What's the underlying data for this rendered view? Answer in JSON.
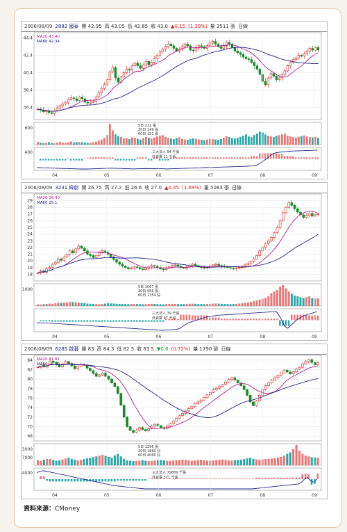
{
  "source": {
    "label": "資料來源：",
    "name": "CMoney"
  },
  "chart_data": [
    {
      "type": "candlestick",
      "header": [
        "2006/08/09",
        "2882 國泰",
        "開 42.95",
        "高 43.05",
        "低 42.85",
        "收 43.0",
        "▲0.15",
        "(1.39%)",
        "量 3511 張",
        "日線"
      ],
      "ma_labels": [
        "MA20 43.40",
        "MA60 42.34"
      ],
      "price_ticks": [
        "44.4",
        "42.4",
        "40.4",
        "38.4",
        "36.4"
      ],
      "price_range": [
        35,
        45
      ],
      "vol_tick": "600",
      "vol_legend": [
        "5日 221 張",
        "20日 149 張",
        "60日 121 張"
      ],
      "flow_tick": "400",
      "flow_legend": [
        "三大法人 94 千張",
        "外資賣 11 千張"
      ],
      "months": [
        "04",
        "05",
        "06",
        "07",
        "08",
        "09"
      ],
      "close": [
        36.2,
        36.1,
        35.9,
        36.0,
        35.8,
        35.7,
        36.0,
        36.3,
        36.6,
        36.8,
        37.0,
        37.3,
        37.5,
        37.4,
        37.2,
        37.6,
        37.4,
        37.0,
        36.9,
        37.0,
        37.1,
        37.6,
        38.1,
        38.6,
        39.0,
        39.6,
        40.5,
        41.0,
        39.8,
        39.3,
        39.9,
        40.4,
        40.8,
        40.7,
        41.2,
        41.5,
        41.2,
        40.9,
        41.3,
        41.7,
        41.3,
        41.6,
        42.0,
        42.4,
        42.8,
        43.1,
        43.4,
        43.7,
        43.5,
        43.2,
        42.9,
        43.1,
        43.4,
        43.7,
        43.5,
        43.0,
        42.9,
        43.3,
        43.5,
        43.4,
        43.2,
        43.5,
        43.8,
        44.0,
        43.7,
        43.4,
        43.2,
        43.5,
        43.9,
        43.7,
        43.3,
        42.9,
        42.7,
        42.5,
        42.2,
        42.0,
        41.9,
        41.6,
        41.2,
        40.8,
        40.2,
        39.4,
        39.0,
        39.8,
        40.3,
        40.0,
        39.6,
        39.8,
        40.2,
        40.6,
        41.2,
        41.6,
        41.9,
        42.1,
        42.4,
        42.3,
        42.6,
        42.9,
        43.2,
        43.0,
        43.3,
        43.0
      ],
      "volume": [
        80,
        60,
        40,
        55,
        70,
        50,
        45,
        60,
        80,
        65,
        55,
        70,
        90,
        60,
        75,
        80,
        70,
        60,
        50,
        55,
        65,
        90,
        120,
        150,
        200,
        280,
        610,
        420,
        300,
        250,
        220,
        180,
        190,
        160,
        210,
        200,
        170,
        150,
        190,
        220,
        200,
        180,
        210,
        240,
        260,
        280,
        230,
        200,
        180,
        160,
        190,
        210,
        170,
        150,
        140,
        160,
        180,
        170,
        150,
        140,
        130,
        150,
        170,
        160,
        150,
        140,
        160,
        200,
        250,
        220,
        190,
        180,
        200,
        230,
        260,
        300,
        240,
        220,
        280,
        320,
        380,
        360,
        300,
        260,
        240,
        220,
        260,
        280,
        300,
        320,
        260,
        240,
        220,
        210,
        230,
        250,
        270,
        240,
        220,
        210,
        230,
        200
      ],
      "flow": [
        0,
        -2,
        -4,
        -6,
        -8,
        -10,
        -12,
        -14,
        -16,
        -18,
        -20,
        -20,
        -22,
        -24,
        -26,
        -28,
        -30,
        -30,
        -30,
        -28,
        -26,
        -24,
        -22,
        -20,
        -18,
        -16,
        -14,
        -12,
        -14,
        -16,
        -18,
        -20,
        -22,
        -24,
        -26,
        -28,
        -26,
        -24,
        -22,
        -20,
        -22,
        -24,
        -22,
        -20,
        -22,
        -24,
        -26,
        -28,
        -26,
        -24,
        -22,
        -20,
        -18,
        -16,
        -14,
        -12,
        -10,
        -8,
        -6,
        -4,
        -2,
        0,
        2,
        4,
        6,
        8,
        10,
        12,
        14,
        16,
        18,
        20,
        22,
        24,
        26,
        28,
        30,
        35,
        40,
        45,
        80,
        120,
        160,
        200,
        260,
        300,
        320,
        330,
        340,
        345,
        350,
        355,
        360,
        362,
        364,
        366,
        368,
        370,
        372,
        374,
        376,
        378
      ]
    },
    {
      "type": "candlestick",
      "header": [
        "2006/08/09",
        "3231 緯創",
        "開 26.75",
        "高 27.2",
        "低 26.6",
        "收 27.0",
        "▲0.45",
        "(1.69%)",
        "量 5083 張",
        "日線"
      ],
      "ma_labels": [
        "MA20 26.40",
        "MA60 25.1"
      ],
      "price_ticks": [
        "29",
        "28",
        "27",
        "26",
        "25",
        "24",
        "23",
        "22",
        "21",
        "20",
        "19",
        "18"
      ],
      "price_range": [
        17,
        30
      ],
      "vol_tick": "1000",
      "vol_legend": [
        "5日 1067 張",
        "20日 956 張",
        "60日 1354 張"
      ],
      "flow_tick": "",
      "flow_legend": [
        "三大法人 39 千張",
        "外資賣 97 千張"
      ],
      "months": [
        "04",
        "05",
        "06",
        "07",
        "08",
        "09"
      ],
      "close": [
        18.2,
        18.5,
        18.3,
        18.8,
        19.0,
        19.5,
        19.8,
        20.3,
        20.1,
        20.6,
        21.0,
        21.5,
        21.2,
        21.8,
        22.2,
        21.9,
        21.5,
        21.0,
        20.8,
        20.5,
        20.8,
        21.2,
        21.5,
        21.3,
        21.0,
        20.6,
        20.2,
        19.8,
        19.5,
        19.2,
        19.0,
        18.8,
        18.9,
        19.1,
        19.0,
        18.8,
        18.7,
        18.9,
        19.1,
        19.3,
        19.2,
        19.0,
        18.8,
        18.7,
        18.9,
        19.1,
        19.3,
        19.4,
        19.2,
        19.0,
        18.9,
        19.1,
        19.3,
        19.5,
        19.3,
        19.1,
        19.0,
        18.9,
        19.0,
        19.2,
        19.4,
        19.5,
        19.3,
        19.2,
        19.1,
        19.0,
        18.9,
        18.8,
        18.9,
        19.0,
        19.2,
        19.4,
        19.6,
        19.9,
        20.3,
        20.8,
        21.5,
        22.0,
        22.6,
        23.0,
        23.5,
        24.2,
        25.0,
        26.0,
        27.2,
        28.0,
        28.7,
        28.3,
        27.8,
        27.3,
        26.9,
        26.5,
        26.8,
        27.1,
        26.7,
        26.9,
        27.0
      ],
      "volume": [
        200,
        180,
        220,
        260,
        300,
        280,
        350,
        400,
        380,
        420,
        450,
        500,
        480,
        460,
        420,
        380,
        350,
        300,
        280,
        260,
        240,
        220,
        260,
        300,
        340,
        320,
        300,
        280,
        260,
        250,
        240,
        230,
        250,
        260,
        240,
        220,
        210,
        230,
        250,
        270,
        260,
        240,
        220,
        210,
        230,
        250,
        270,
        260,
        240,
        220,
        230,
        250,
        270,
        290,
        270,
        250,
        240,
        230,
        250,
        270,
        290,
        310,
        290,
        270,
        250,
        240,
        230,
        250,
        270,
        300,
        340,
        380,
        420,
        500,
        600,
        700,
        800,
        900,
        1000,
        1200,
        1600,
        1800,
        2000,
        2400,
        2600,
        2200,
        1800,
        1500,
        1300,
        1200,
        1100,
        1000,
        1100,
        1200,
        1000,
        900,
        950
      ],
      "flow": [
        0,
        -1,
        -2,
        -3,
        -4,
        -6,
        -8,
        -10,
        -12,
        -14,
        -16,
        -18,
        -20,
        -22,
        -24,
        -26,
        -28,
        -30,
        -32,
        -34,
        -36,
        -38,
        -40,
        -42,
        -44,
        -46,
        -48,
        -50,
        -52,
        -54,
        -56,
        -58,
        -60,
        -62,
        -64,
        -66,
        -68,
        -70,
        -72,
        -74,
        -76,
        -78,
        -80,
        -82,
        -80,
        -78,
        -76,
        -74,
        -72,
        -60,
        -40,
        -20,
        0,
        10,
        20,
        30,
        40,
        50,
        60,
        65,
        70,
        75,
        80,
        82,
        84,
        86,
        88,
        90,
        92,
        94,
        96,
        98,
        100,
        102,
        104,
        106,
        108,
        110,
        112,
        114,
        116,
        118,
        120,
        80,
        20,
        -40,
        -60,
        -30,
        0,
        30,
        50,
        70,
        80,
        90,
        100,
        110,
        120
      ]
    },
    {
      "type": "candlestick",
      "header": [
        "2006/08/09",
        "6285 啟碁",
        "開 83",
        "高 84.3",
        "低 82.5",
        "收 83.5",
        "▼0.6",
        "(0.72%)",
        "量 1790 張",
        "日線"
      ],
      "ma_labels": [
        "MA20 81.81",
        "MA60 76.99"
      ],
      "price_ticks": [
        "84",
        "82",
        "80",
        "78",
        "76",
        "74",
        "72",
        "70",
        "68"
      ],
      "price_range": [
        67,
        85
      ],
      "vol_tick": "13000",
      "vol_tick2": "7000",
      "vol_legend": [
        "5日 1296 張",
        "20日 1880 張",
        "60日 4060 張"
      ],
      "flow_tick": "94000",
      "flow_legend": [
        "三大法人 79889 千張",
        "外資賣 571 千張"
      ],
      "months": [
        "04",
        "05",
        "06",
        "07",
        "08",
        "09"
      ],
      "close": [
        82.5,
        83.0,
        82.6,
        83.2,
        83.8,
        83.5,
        83.0,
        82.6,
        83.2,
        83.7,
        83.3,
        82.8,
        82.2,
        82.7,
        83.1,
        82.9,
        82.3,
        81.8,
        81.2,
        80.6,
        80.9,
        81.3,
        80.6,
        80.0,
        79.2,
        78.4,
        77.0,
        74.5,
        72.0,
        70.0,
        69.2,
        68.8,
        69.3,
        69.8,
        69.4,
        69.1,
        69.6,
        70.1,
        70.5,
        70.2,
        69.8,
        69.6,
        70.1,
        70.6,
        71.2,
        71.8,
        72.3,
        72.8,
        73.3,
        73.8,
        74.2,
        74.8,
        75.2,
        75.6,
        76.1,
        76.7,
        77.2,
        77.8,
        78.1,
        78.5,
        78.9,
        79.4,
        79.9,
        80.3,
        79.8,
        79.2,
        78.6,
        77.8,
        76.6,
        75.2,
        74.4,
        75.4,
        76.6,
        77.8,
        78.6,
        79.2,
        79.8,
        80.3,
        80.8,
        81.3,
        81.9,
        81.5,
        81.1,
        81.6,
        82.1,
        82.5,
        83.2,
        83.7,
        84.1,
        83.5,
        83.0,
        83.5
      ],
      "volume": [
        3000,
        2800,
        3500,
        4000,
        3800,
        3200,
        2800,
        3000,
        3500,
        4200,
        4600,
        4000,
        3500,
        3000,
        3300,
        3800,
        4200,
        4600,
        5000,
        5500,
        6000,
        6500,
        5800,
        5200,
        4800,
        6000,
        7000,
        5500,
        4000,
        3000,
        2800,
        2600,
        2700,
        2900,
        3100,
        2800,
        2600,
        2700,
        2900,
        3100,
        3300,
        3000,
        2800,
        2700,
        2900,
        3100,
        3300,
        3500,
        3200,
        3000,
        2800,
        3000,
        3200,
        3400,
        3100,
        2900,
        2800,
        3000,
        3200,
        3400,
        3600,
        3300,
        3000,
        2900,
        3100,
        3300,
        3500,
        3800,
        4200,
        4600,
        4000,
        3600,
        3400,
        3600,
        3800,
        4000,
        4200,
        4400,
        4800,
        5200,
        6000,
        7000,
        8000,
        10000,
        12500,
        9000,
        7000,
        6000,
        5500,
        5000,
        4800,
        4600
      ],
      "flow": [
        0,
        5,
        10,
        8,
        4,
        0,
        -4,
        -8,
        -12,
        -16,
        -20,
        -24,
        -28,
        -32,
        -36,
        -40,
        -44,
        -48,
        -52,
        -56,
        -60,
        -64,
        -68,
        -72,
        -76,
        -80,
        -82,
        -84,
        -86,
        -88,
        -90,
        -92,
        -94,
        -96,
        -98,
        -100,
        -100,
        -100,
        -100,
        -100,
        -100,
        -100,
        -100,
        -100,
        -100,
        -100,
        -100,
        -100,
        -100,
        -100,
        -100,
        -100,
        -100,
        -100,
        -100,
        -100,
        -100,
        -100,
        -100,
        -100,
        -100,
        -100,
        -100,
        -100,
        -100,
        -100,
        -100,
        -100,
        -100,
        -100,
        -100,
        -98,
        -96,
        -94,
        -92,
        -90,
        -88,
        -86,
        -84,
        -82,
        -80,
        -78,
        -76,
        -74,
        -72,
        -70,
        -60,
        -40,
        -30,
        -50,
        -60,
        -40
      ]
    }
  ]
}
